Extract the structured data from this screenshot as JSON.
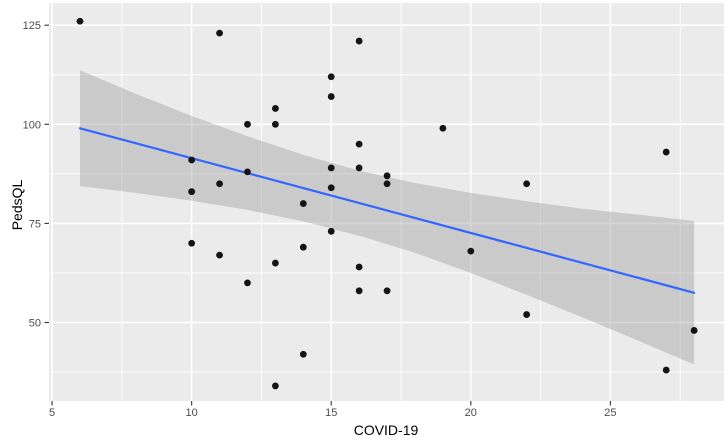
{
  "figure": {
    "background": "#FFFFFF"
  },
  "chart_data": {
    "type": "scatter",
    "title": "",
    "xlabel": "COVID-19",
    "ylabel": "PedsQL",
    "x_ticks": [
      5,
      10,
      15,
      20,
      25
    ],
    "x_minor_ticks": [
      7.5,
      12.5,
      17.5,
      22.5,
      27.5
    ],
    "y_ticks": [
      50,
      75,
      100,
      125
    ],
    "y_minor_ticks": [
      37.5,
      62.5,
      87.5,
      112.5
    ],
    "xlim": [
      4.89,
      29.07
    ],
    "ylim": [
      30.2,
      130.6
    ],
    "grid": "major-and-minor",
    "legend": "none",
    "points": [
      [
        6,
        126
      ],
      [
        11,
        123
      ],
      [
        16,
        121
      ],
      [
        15,
        112
      ],
      [
        15,
        107
      ],
      [
        13,
        104
      ],
      [
        12,
        100
      ],
      [
        13,
        100
      ],
      [
        19,
        99
      ],
      [
        16,
        95
      ],
      [
        27,
        93
      ],
      [
        10,
        91
      ],
      [
        15,
        89
      ],
      [
        16,
        89
      ],
      [
        12,
        88
      ],
      [
        17,
        87
      ],
      [
        11,
        85
      ],
      [
        17,
        85
      ],
      [
        22,
        85
      ],
      [
        15,
        84
      ],
      [
        10,
        83
      ],
      [
        14,
        80
      ],
      [
        15,
        73
      ],
      [
        10,
        70
      ],
      [
        14,
        69
      ],
      [
        20,
        68
      ],
      [
        11,
        67
      ],
      [
        13,
        65
      ],
      [
        16,
        64
      ],
      [
        12,
        60
      ],
      [
        16,
        58
      ],
      [
        17,
        58
      ],
      [
        22,
        52
      ],
      [
        28,
        48
      ],
      [
        14,
        42
      ],
      [
        27,
        38
      ],
      [
        13,
        34
      ]
    ],
    "trend": {
      "type": "linear",
      "x": [
        6,
        28
      ],
      "y": [
        99.0,
        57.5
      ]
    },
    "ci_band": {
      "x": [
        6,
        8,
        10,
        12,
        14,
        16,
        18,
        20,
        22,
        24,
        26,
        28
      ],
      "upper": [
        113.6,
        107.7,
        102.1,
        97.0,
        92.3,
        88.3,
        85.2,
        82.7,
        80.6,
        78.7,
        77.2,
        75.6
      ],
      "lower": [
        84.4,
        82.7,
        80.7,
        78.4,
        75.5,
        71.9,
        67.6,
        62.5,
        57.0,
        51.3,
        45.4,
        39.4
      ]
    },
    "theme": {
      "panel_bg": "#EBEBEB",
      "grid_major": "#FFFFFF",
      "grid_minor": "#FFFFFF",
      "ribbon_fill": "#999999",
      "ribbon_opacity": 0.4,
      "line_color": "#3366FF",
      "point_color": "#141414",
      "tick_mark_color": "#333333",
      "tick_label_color": "#4D4D4D",
      "axis_title_color": "#000000"
    }
  }
}
